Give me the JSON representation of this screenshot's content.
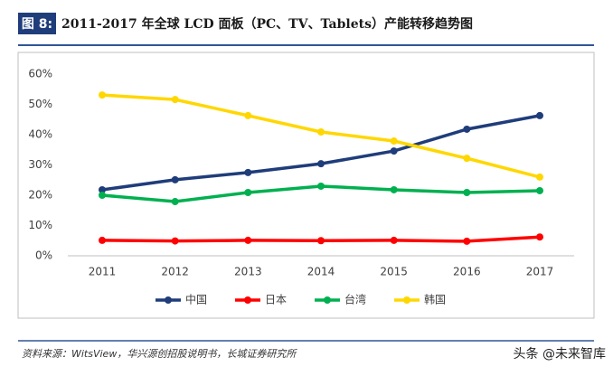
{
  "figure_label": "图 8:",
  "chart_data": {
    "type": "line",
    "title": "2011-2017 年全球 LCD 面板（PC、TV、Tablets）产能转移趋势图",
    "categories": [
      "2011",
      "2012",
      "2013",
      "2014",
      "2015",
      "2016",
      "2017"
    ],
    "series": [
      {
        "name": "中国",
        "color": "#1f3d7a",
        "values": [
          21.8,
          25.1,
          27.5,
          30.4,
          34.6,
          41.8,
          46.3
        ]
      },
      {
        "name": "日本",
        "color": "#ff0000",
        "values": [
          5.1,
          4.9,
          5.1,
          5.0,
          5.1,
          4.8,
          6.2
        ]
      },
      {
        "name": "台湾",
        "color": "#00b050",
        "values": [
          20.0,
          17.9,
          20.9,
          23.0,
          21.8,
          20.9,
          21.5
        ]
      },
      {
        "name": "韩国",
        "color": "#ffd700",
        "values": [
          53.1,
          51.6,
          46.3,
          40.9,
          37.9,
          32.2,
          26.0
        ]
      }
    ],
    "ylim": [
      0,
      60
    ],
    "yticks": [
      {
        "value": 0,
        "label": "0%"
      },
      {
        "value": 10,
        "label": "10%"
      },
      {
        "value": 20,
        "label": "20%"
      },
      {
        "value": 30,
        "label": "30%"
      },
      {
        "value": 40,
        "label": "40%"
      },
      {
        "value": 50,
        "label": "50%"
      },
      {
        "value": 60,
        "label": "60%"
      }
    ],
    "grid": false,
    "legend": "bottom"
  },
  "source": "资料来源：WitsView，华兴源创招股说明书，长城证券研究所",
  "watermark": "头条 @未来智库"
}
